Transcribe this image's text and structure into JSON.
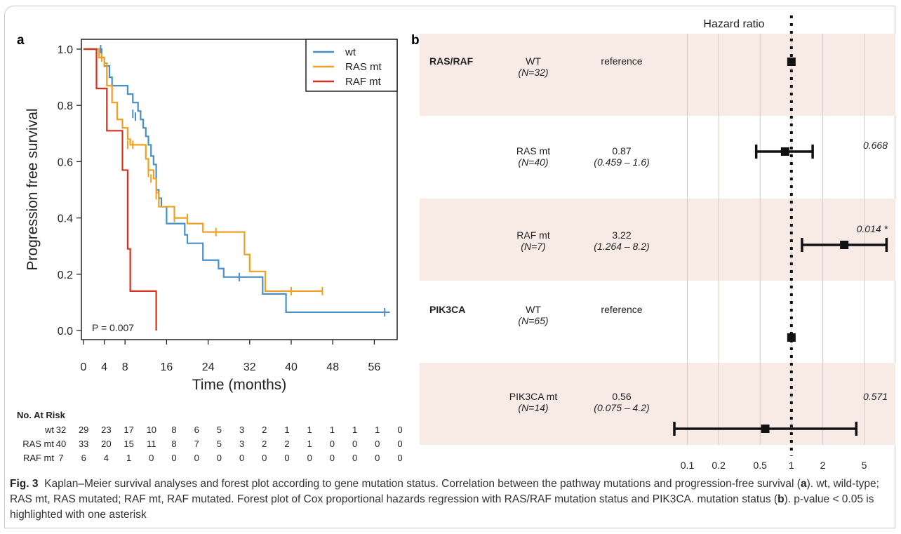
{
  "panel_a_label": "a",
  "panel_b_label": "b",
  "caption": {
    "fig_label": "Fig. 3",
    "part1": "Kaplan–Meier survival analyses and forest plot according to gene mutation status. Correlation between the pathway mutations and progression-free survival (",
    "ref_a": "a",
    "part2": "). wt, wild-type; RAS mt, RAS mutated; RAF mt, RAF mutated. Forest plot of Cox proportional hazards regression with RAS/RAF mutation status and PIK3CA. mutation status (",
    "ref_b": "b",
    "part3": "). p-value < 0.05 is highlighted with one asterisk"
  },
  "risk_table": {
    "title": "No. At Risk",
    "rows": [
      {
        "label": "wt",
        "values": [
          "32",
          "29",
          "23",
          "17",
          "10",
          "8",
          "6",
          "5",
          "3",
          "2",
          "1",
          "1",
          "1",
          "1",
          "1",
          "0"
        ]
      },
      {
        "label": "RAS mt",
        "values": [
          "40",
          "33",
          "20",
          "15",
          "11",
          "8",
          "7",
          "5",
          "3",
          "2",
          "2",
          "1",
          "0",
          "0",
          "0",
          "0"
        ]
      },
      {
        "label": "RAF mt",
        "values": [
          "7",
          "6",
          "4",
          "1",
          "0",
          "0",
          "0",
          "0",
          "0",
          "0",
          "0",
          "0",
          "0",
          "0",
          "0",
          "0"
        ]
      }
    ]
  },
  "colors": {
    "wt": "#4a90c8",
    "ras": "#f0a020",
    "raf": "#d6301e",
    "band": "#f8ebe6",
    "grid": "#d8c8c4"
  },
  "chart_data": [
    {
      "type": "line",
      "subtype": "kaplan-meier",
      "xlabel": "Time (months)",
      "ylabel": "Progression free survival",
      "xlim": [
        0,
        60
      ],
      "ylim": [
        0,
        1.0
      ],
      "xticks": [
        0,
        4,
        8,
        16,
        24,
        32,
        40,
        48,
        56
      ],
      "xtick_labels": [
        "0",
        "4",
        "8",
        "16",
        "24",
        "32",
        "40",
        "48",
        "56"
      ],
      "yticks": [
        0.0,
        0.2,
        0.4,
        0.6,
        0.8,
        1.0
      ],
      "ytick_labels": [
        "0.0",
        "0.2",
        "0.4",
        "0.6",
        "0.8",
        "1.0"
      ],
      "legend": "top-right",
      "annotation": "P = 0.007",
      "series": [
        {
          "name": "wt",
          "color": "#4a90c8",
          "steps": [
            [
              0,
              1.0
            ],
            [
              3.5,
              0.97
            ],
            [
              4,
              0.94
            ],
            [
              5,
              0.9
            ],
            [
              5.5,
              0.87
            ],
            [
              8,
              0.87
            ],
            [
              8.5,
              0.84
            ],
            [
              9.5,
              0.81
            ],
            [
              10.5,
              0.78
            ],
            [
              11,
              0.75
            ],
            [
              11.5,
              0.72
            ],
            [
              12,
              0.69
            ],
            [
              12.5,
              0.66
            ],
            [
              13,
              0.62
            ],
            [
              13.5,
              0.59
            ],
            [
              14,
              0.5
            ],
            [
              14.5,
              0.47
            ],
            [
              15,
              0.44
            ],
            [
              16,
              0.38
            ],
            [
              19,
              0.38
            ],
            [
              19.5,
              0.34
            ],
            [
              20,
              0.31
            ],
            [
              23,
              0.25
            ],
            [
              26,
              0.22
            ],
            [
              27,
              0.19
            ],
            [
              34.5,
              0.13
            ],
            [
              39,
              0.065
            ],
            [
              59,
              0.065
            ]
          ],
          "censors": [
            [
              3.3,
              1.0
            ],
            [
              9.5,
              0.77
            ],
            [
              10,
              0.76
            ],
            [
              30,
              0.19
            ],
            [
              58,
              0.065
            ]
          ]
        },
        {
          "name": "RAS mt",
          "color": "#f0a020",
          "steps": [
            [
              0,
              1.0
            ],
            [
              2.5,
              1.0
            ],
            [
              3,
              0.97
            ],
            [
              4,
              0.95
            ],
            [
              4.5,
              0.87
            ],
            [
              5.5,
              0.81
            ],
            [
              6.5,
              0.75
            ],
            [
              7.5,
              0.72
            ],
            [
              8.5,
              0.68
            ],
            [
              9,
              0.66
            ],
            [
              12,
              0.61
            ],
            [
              12.5,
              0.57
            ],
            [
              13.5,
              0.54
            ],
            [
              14,
              0.49
            ],
            [
              14.5,
              0.44
            ],
            [
              17.5,
              0.4
            ],
            [
              20,
              0.38
            ],
            [
              23,
              0.35
            ],
            [
              31,
              0.27
            ],
            [
              32,
              0.21
            ],
            [
              35,
              0.14
            ],
            [
              46,
              0.14
            ]
          ],
          "censors": [
            [
              3.5,
              0.97
            ],
            [
              4,
              0.95
            ],
            [
              8.5,
              0.66
            ],
            [
              9.5,
              0.66
            ],
            [
              12.5,
              0.56
            ],
            [
              13,
              0.54
            ],
            [
              14,
              0.48
            ],
            [
              17.5,
              0.4
            ],
            [
              20,
              0.4
            ],
            [
              25.5,
              0.35
            ],
            [
              40,
              0.14
            ],
            [
              46,
              0.14
            ]
          ]
        },
        {
          "name": "RAF mt",
          "color": "#d6301e",
          "steps": [
            [
              0,
              1.0
            ],
            [
              1.5,
              1.0
            ],
            [
              2.5,
              0.86
            ],
            [
              4.5,
              0.71
            ],
            [
              7.5,
              0.57
            ],
            [
              8.5,
              0.29
            ],
            [
              9,
              0.14
            ],
            [
              14,
              0.14
            ],
            [
              14,
              0.0
            ]
          ],
          "censors": []
        }
      ]
    },
    {
      "type": "forest",
      "title": "Hazard ratio",
      "scale": "log",
      "xticks": [
        0.1,
        0.2,
        0.5,
        1,
        2,
        5
      ],
      "xtick_labels": [
        "0.1",
        "0.2",
        "0.5",
        "1",
        "2",
        "5"
      ],
      "xlim": [
        0.05,
        8.5
      ],
      "reference_line": 1,
      "rows": [
        {
          "group": "RAS/RAF",
          "level": "WT",
          "n": "(N=32)",
          "hr_text": "reference",
          "ci_text": "",
          "hr": 1,
          "lo": null,
          "hi": null,
          "p": "",
          "shaded": true
        },
        {
          "group": "",
          "level": "RAS mt",
          "n": "(N=40)",
          "hr_text": "0.87",
          "ci_text": "(0.459 – 1.6)",
          "hr": 0.87,
          "lo": 0.459,
          "hi": 1.6,
          "p": "0.668",
          "shaded": false
        },
        {
          "group": "",
          "level": "RAF mt",
          "n": "(N=7)",
          "hr_text": "3.22",
          "ci_text": "(1.264 – 8.2)",
          "hr": 3.22,
          "lo": 1.264,
          "hi": 8.2,
          "p": "0.014 *",
          "shaded": true
        },
        {
          "group": "PIK3CA",
          "level": "WT",
          "n": "(N=65)",
          "hr_text": "reference",
          "ci_text": "",
          "hr": 1,
          "lo": null,
          "hi": null,
          "p": "",
          "shaded": false
        },
        {
          "group": "",
          "level": "PIK3CA mt",
          "n": "(N=14)",
          "hr_text": "0.56",
          "ci_text": "(0.075 – 4.2)",
          "hr": 0.56,
          "lo": 0.075,
          "hi": 4.2,
          "p": "0.571",
          "shaded": true
        }
      ]
    }
  ]
}
